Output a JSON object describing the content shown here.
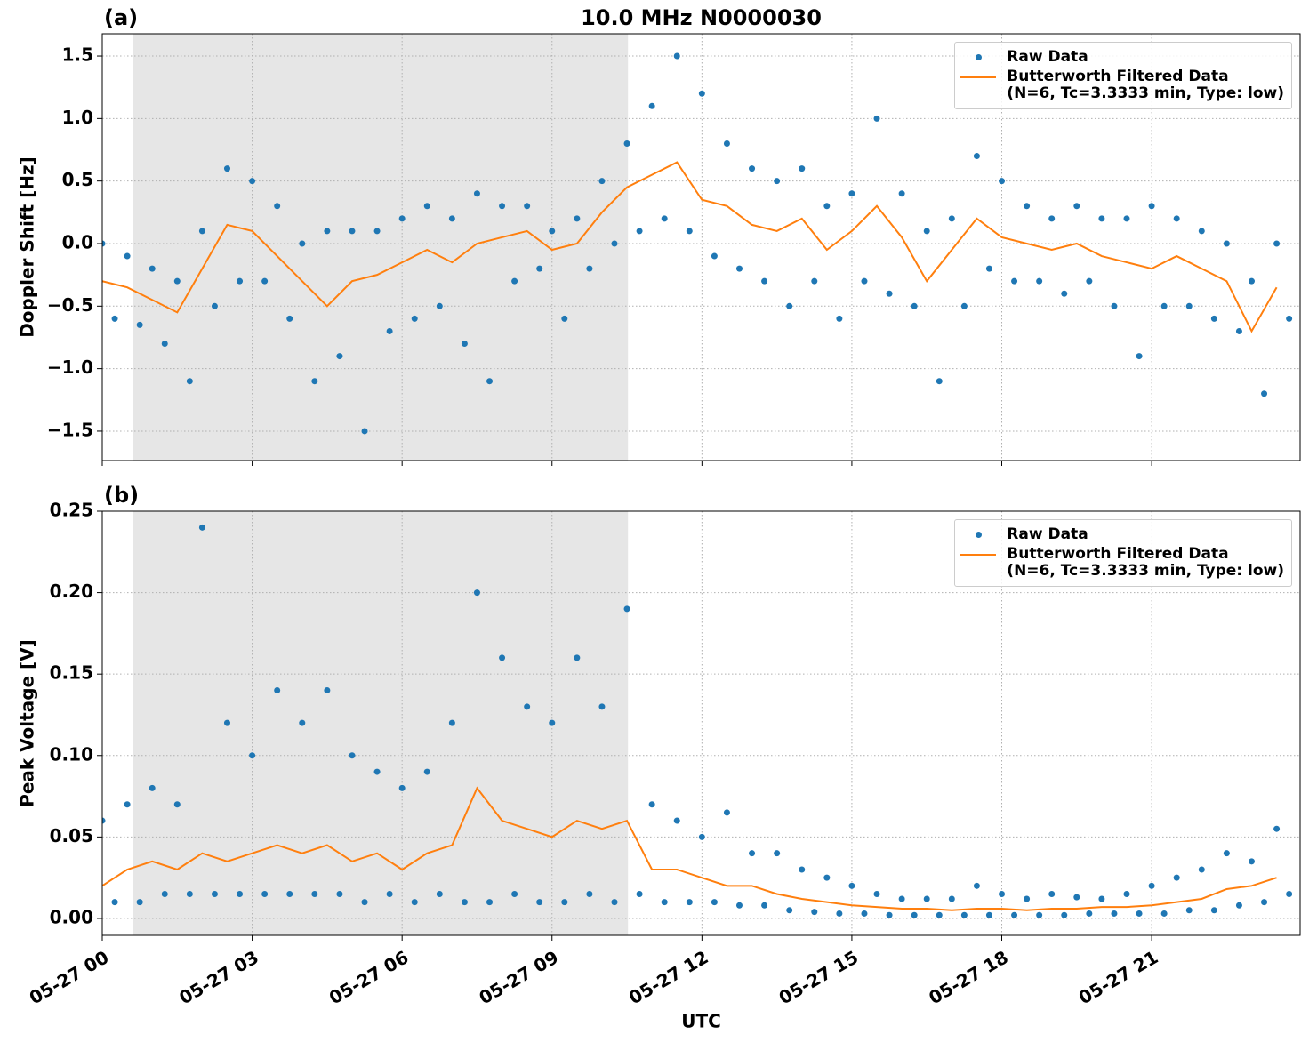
{
  "chart_data": [
    {
      "type": "scatter",
      "title": "10.0 MHz N0000030",
      "panel_label": "(a)",
      "ylabel": "Doppler Shift [Hz]",
      "xlim": [
        0,
        23.97
      ],
      "xticks": [
        0,
        3,
        6,
        9,
        12,
        15,
        18,
        21
      ],
      "show_xtick_labels": false,
      "ylim": [
        -1.735,
        1.678
      ],
      "yticks": [
        {
          "value": -1.5,
          "label": "−1.5"
        },
        {
          "value": -1.0,
          "label": "−1.0"
        },
        {
          "value": -0.5,
          "label": "−0.5"
        },
        {
          "value": 0.0,
          "label": "0.0"
        },
        0.5,
        {
          "value": 1.0,
          "label": "1.0"
        },
        1.5
      ],
      "grid": true,
      "legend": "upper right",
      "shaded_span": [
        0.62,
        10.52
      ],
      "shade_color": "#e6e6e6",
      "series": [
        {
          "name": "Raw Data",
          "type": "scatter",
          "color": "#1f77b4",
          "x": [
            0,
            0.25,
            0.5,
            0.75,
            1,
            1.25,
            1.5,
            1.75,
            2,
            2.25,
            2.5,
            2.75,
            3,
            3.25,
            3.5,
            3.75,
            4,
            4.25,
            4.5,
            4.75,
            5,
            5.25,
            5.5,
            5.75,
            6,
            6.25,
            6.5,
            6.75,
            7,
            7.25,
            7.5,
            7.75,
            8,
            8.25,
            8.5,
            8.75,
            9,
            9.25,
            9.5,
            9.75,
            10,
            10.25,
            10.5,
            10.75,
            11,
            11.25,
            11.5,
            11.75,
            12,
            12.25,
            12.5,
            12.75,
            13,
            13.25,
            13.5,
            13.75,
            14,
            14.25,
            14.5,
            14.75,
            15,
            15.25,
            15.5,
            15.75,
            16,
            16.25,
            16.5,
            16.75,
            17,
            17.25,
            17.5,
            17.75,
            18,
            18.25,
            18.5,
            18.75,
            19,
            19.25,
            19.5,
            19.75,
            20,
            20.25,
            20.5,
            20.75,
            21,
            21.25,
            21.5,
            21.75,
            22,
            22.25,
            22.5,
            22.75,
            23,
            23.25,
            23.5,
            23.75
          ],
          "values": [
            0.0,
            -0.6,
            -0.1,
            -0.65,
            -0.2,
            -0.8,
            -0.3,
            -1.1,
            0.1,
            -0.5,
            0.6,
            -0.3,
            0.5,
            -0.3,
            0.3,
            -0.6,
            0.0,
            -1.1,
            0.1,
            -0.9,
            0.1,
            -1.5,
            0.1,
            -0.7,
            0.2,
            -0.6,
            0.3,
            -0.5,
            0.2,
            -0.8,
            0.4,
            -1.1,
            0.3,
            -0.3,
            0.3,
            -0.2,
            0.1,
            -0.6,
            0.2,
            -0.2,
            0.5,
            0.0,
            0.8,
            0.1,
            1.1,
            0.2,
            1.5,
            0.1,
            1.2,
            -0.1,
            0.8,
            -0.2,
            0.6,
            -0.3,
            0.5,
            -0.5,
            0.6,
            -0.3,
            0.3,
            -0.6,
            0.4,
            -0.3,
            1.0,
            -0.4,
            0.4,
            -0.5,
            0.1,
            -1.1,
            0.2,
            -0.5,
            0.7,
            -0.2,
            0.5,
            -0.3,
            0.3,
            -0.3,
            0.2,
            -0.4,
            0.3,
            -0.3,
            0.2,
            -0.5,
            0.2,
            -0.9,
            0.3,
            -0.5,
            0.2,
            -0.5,
            0.1,
            -0.6,
            0.0,
            -0.7,
            -0.3,
            -1.2,
            0.0,
            -0.6
          ]
        },
        {
          "name": "Butterworth Filtered Data\n(N=6, Tc=3.3333 min, Type: low)",
          "type": "line",
          "color": "#ff7f0e",
          "x": [
            0,
            0.5,
            1,
            1.5,
            2,
            2.5,
            3,
            3.5,
            4,
            4.5,
            5,
            5.5,
            6,
            6.5,
            7,
            7.5,
            8,
            8.5,
            9,
            9.5,
            10,
            10.5,
            11,
            11.5,
            12,
            12.5,
            13,
            13.5,
            14,
            14.5,
            15,
            15.5,
            16,
            16.5,
            17,
            17.5,
            18,
            18.5,
            19,
            19.5,
            20,
            20.5,
            21,
            21.5,
            22,
            22.5,
            23,
            23.5
          ],
          "values": [
            -0.3,
            -0.35,
            -0.45,
            -0.55,
            -0.2,
            0.15,
            0.1,
            -0.1,
            -0.3,
            -0.5,
            -0.3,
            -0.25,
            -0.15,
            -0.05,
            -0.15,
            0.0,
            0.05,
            0.1,
            -0.05,
            0.0,
            0.25,
            0.45,
            0.55,
            0.65,
            0.35,
            0.3,
            0.15,
            0.1,
            0.2,
            -0.05,
            0.1,
            0.3,
            0.05,
            -0.3,
            -0.05,
            0.2,
            0.05,
            0.0,
            -0.05,
            0.0,
            -0.1,
            -0.15,
            -0.2,
            -0.1,
            -0.2,
            -0.3,
            -0.7,
            -0.35
          ]
        }
      ]
    },
    {
      "type": "scatter",
      "panel_label": "(b)",
      "ylabel": "Peak Voltage [V]",
      "xlabel": "UTC",
      "xlim": [
        0,
        23.97
      ],
      "xticks": [
        {
          "value": 0,
          "label": "05-27 00"
        },
        {
          "value": 3,
          "label": "05-27 03"
        },
        {
          "value": 6,
          "label": "05-27 06"
        },
        {
          "value": 9,
          "label": "05-27 09"
        },
        {
          "value": 12,
          "label": "05-27 12"
        },
        {
          "value": 15,
          "label": "05-27 15"
        },
        {
          "value": 18,
          "label": "05-27 18"
        },
        {
          "value": 21,
          "label": "05-27 21"
        }
      ],
      "show_xtick_labels": true,
      "ylim": [
        -0.0104,
        0.25
      ],
      "yticks": [
        {
          "value": 0.0,
          "label": "0.00"
        },
        0.05,
        {
          "value": 0.1,
          "label": "0.10"
        },
        0.15,
        {
          "value": 0.2,
          "label": "0.20"
        },
        0.25
      ],
      "grid": true,
      "legend": "upper right",
      "shaded_span": [
        0.62,
        10.52
      ],
      "shade_color": "#e6e6e6",
      "series": [
        {
          "name": "Raw Data",
          "type": "scatter",
          "color": "#1f77b4",
          "x": [
            0,
            0.25,
            0.5,
            0.75,
            1,
            1.25,
            1.5,
            1.75,
            2,
            2.25,
            2.5,
            2.75,
            3,
            3.25,
            3.5,
            3.75,
            4,
            4.25,
            4.5,
            4.75,
            5,
            5.25,
            5.5,
            5.75,
            6,
            6.25,
            6.5,
            6.75,
            7,
            7.25,
            7.5,
            7.75,
            8,
            8.25,
            8.5,
            8.75,
            9,
            9.25,
            9.5,
            9.75,
            10,
            10.25,
            10.5,
            10.75,
            11,
            11.25,
            11.5,
            11.75,
            12,
            12.25,
            12.5,
            12.75,
            13,
            13.25,
            13.5,
            13.75,
            14,
            14.25,
            14.5,
            14.75,
            15,
            15.25,
            15.5,
            15.75,
            16,
            16.25,
            16.5,
            16.75,
            17,
            17.25,
            17.5,
            17.75,
            18,
            18.25,
            18.5,
            18.75,
            19,
            19.25,
            19.5,
            19.75,
            20,
            20.25,
            20.5,
            20.75,
            21,
            21.25,
            21.5,
            21.75,
            22,
            22.25,
            22.5,
            22.75,
            23,
            23.25,
            23.5,
            23.75
          ],
          "values": [
            0.06,
            0.01,
            0.07,
            0.01,
            0.08,
            0.015,
            0.07,
            0.015,
            0.24,
            0.015,
            0.12,
            0.015,
            0.1,
            0.015,
            0.14,
            0.015,
            0.12,
            0.015,
            0.14,
            0.015,
            0.1,
            0.01,
            0.09,
            0.015,
            0.08,
            0.01,
            0.09,
            0.015,
            0.12,
            0.01,
            0.2,
            0.01,
            0.16,
            0.015,
            0.13,
            0.01,
            0.12,
            0.01,
            0.16,
            0.015,
            0.13,
            0.01,
            0.19,
            0.015,
            0.07,
            0.01,
            0.06,
            0.01,
            0.05,
            0.01,
            0.065,
            0.008,
            0.04,
            0.008,
            0.04,
            0.005,
            0.03,
            0.004,
            0.025,
            0.003,
            0.02,
            0.003,
            0.015,
            0.002,
            0.012,
            0.002,
            0.012,
            0.002,
            0.012,
            0.002,
            0.02,
            0.002,
            0.015,
            0.002,
            0.012,
            0.002,
            0.015,
            0.002,
            0.013,
            0.003,
            0.012,
            0.003,
            0.015,
            0.003,
            0.02,
            0.003,
            0.025,
            0.005,
            0.03,
            0.005,
            0.04,
            0.008,
            0.035,
            0.01,
            0.055,
            0.015
          ]
        },
        {
          "name": "Butterworth Filtered Data\n(N=6, Tc=3.3333 min, Type: low)",
          "type": "line",
          "color": "#ff7f0e",
          "x": [
            0,
            0.5,
            1,
            1.5,
            2,
            2.5,
            3,
            3.5,
            4,
            4.5,
            5,
            5.5,
            6,
            6.5,
            7,
            7.5,
            8,
            8.5,
            9,
            9.5,
            10,
            10.5,
            11,
            11.5,
            12,
            12.5,
            13,
            13.5,
            14,
            14.5,
            15,
            15.5,
            16,
            16.5,
            17,
            17.5,
            18,
            18.5,
            19,
            19.5,
            20,
            20.5,
            21,
            21.5,
            22,
            22.5,
            23,
            23.5
          ],
          "values": [
            0.02,
            0.03,
            0.035,
            0.03,
            0.04,
            0.035,
            0.04,
            0.045,
            0.04,
            0.045,
            0.035,
            0.04,
            0.03,
            0.04,
            0.045,
            0.08,
            0.06,
            0.055,
            0.05,
            0.06,
            0.055,
            0.06,
            0.03,
            0.03,
            0.025,
            0.02,
            0.02,
            0.015,
            0.012,
            0.01,
            0.008,
            0.007,
            0.006,
            0.006,
            0.005,
            0.006,
            0.006,
            0.005,
            0.006,
            0.006,
            0.007,
            0.007,
            0.008,
            0.01,
            0.012,
            0.018,
            0.02,
            0.025
          ]
        }
      ]
    }
  ]
}
